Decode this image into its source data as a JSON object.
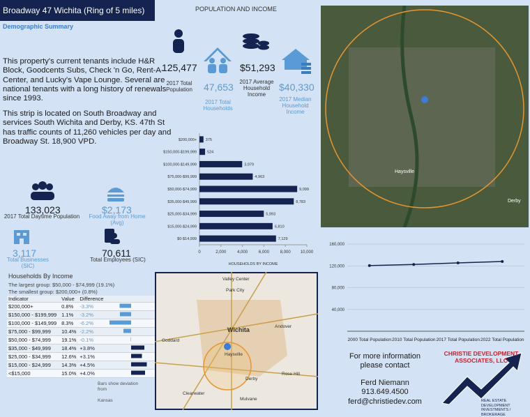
{
  "header": {
    "title": "Broadway 47 Wichita (Ring of 5 miles)",
    "subtitle": "Demographic Summary"
  },
  "summary": [
    "This property's current tenants include H&R Block, Goodcents Subs, Check 'n Go, Rent-A-Center, and Lucky's Vape Lounge. Several are national tenants with a long history of renewals since 1993.",
    "This strip is located on South Broadway and services South Wichita and Derby, KS. 47th St has traffic counts of 11,260 vehicles per day and Broadway St. 18,900 VPD."
  ],
  "stats": {
    "title": "POPULATION AND INCOME",
    "items": [
      {
        "value": "125,477",
        "label": "2017 Total Population"
      },
      {
        "value": "47,653",
        "label": "2017 Total Households"
      },
      {
        "value": "$51,293",
        "label": "2017 Average Household Income"
      },
      {
        "value": "$40,330",
        "label": "2017 Median Household Income"
      },
      {
        "value": "133,023",
        "label": "2017 Total Daytime Population"
      },
      {
        "value": "$2,173",
        "label": "Food Away from Home (Avg)"
      },
      {
        "value": "3,117",
        "label": "Total Businesses (SIC)"
      },
      {
        "value": "70,611",
        "label": "Total Employees (SIC)"
      }
    ]
  },
  "chart_data": [
    {
      "type": "bar",
      "orientation": "horizontal",
      "xlabel": "HOUSEHOLDS BY INCOME",
      "categories": [
        "$200,000+",
        "$150,000-$199,999",
        "$100,000-$149,999",
        "$75,000-$99,999",
        "$50,000-$74,999",
        "$35,000-$49,999",
        "$25,000-$34,999",
        "$15,000-$24,999",
        "$0-$14,999"
      ],
      "values": [
        375,
        524,
        3979,
        4963,
        9099,
        8783,
        5993,
        6810,
        7129
      ],
      "value_labels": [
        "375",
        "524",
        "3,979",
        "4,963",
        "9,099",
        "8,783",
        "5,993",
        "6,810",
        "7,129"
      ],
      "color": "#14234f",
      "xlim": [
        0,
        10000
      ],
      "xticks": [
        0,
        {
          "value": 2000,
          "label": "2,000"
        },
        {
          "value": 4000,
          "label": "4,000"
        },
        {
          "value": 6000,
          "label": "6,000"
        },
        {
          "value": 8000,
          "label": "8,000"
        },
        {
          "value": 10000,
          "label": "10,000"
        }
      ]
    },
    {
      "type": "line",
      "categories": [
        "2000 Total Population",
        "2010 Total Population",
        "2017 Total Population",
        "2022 Total Population"
      ],
      "values": [
        120500,
        122500,
        125477,
        128000
      ],
      "color": "#14234f",
      "ylim": [
        0,
        160000
      ],
      "yticks": [
        {
          "value": 40000,
          "label": "40,000"
        },
        {
          "value": 80000,
          "label": "80,000"
        },
        {
          "value": 120000,
          "label": "120,000"
        },
        {
          "value": 160000,
          "label": "160,000"
        }
      ],
      "grid": true
    }
  ],
  "income_table": {
    "title": "Households By Income",
    "largest": "The largest group: $50,000 - $74,999 (19.1%)",
    "smallest": "The smallest group: $200,000+ (0.8%)",
    "header": [
      "Indicator",
      "Value",
      "Difference"
    ],
    "rows": [
      [
        "$200,000+",
        "0.8%",
        "-3.3%"
      ],
      [
        "$150,000 - $199,999",
        "1.1%",
        "-3.2%"
      ],
      [
        "$100,000 - $149,999",
        "8.3%",
        "-6.2%"
      ],
      [
        "$75,000 - $99,999",
        "10.4%",
        "-2.2%"
      ],
      [
        "$50,000 - $74,999",
        "19.1%",
        "-0.1%"
      ],
      [
        "$35,000 - $49,999",
        "18.4%",
        "+3.8%"
      ],
      [
        "$25,000 - $34,999",
        "12.6%",
        "+3.1%"
      ],
      [
        "$15,000 - $24,999",
        "14.3%",
        "+4.5%"
      ],
      [
        "<$15,000",
        "15.0%",
        "+4.0%"
      ]
    ],
    "differences": [
      -3.3,
      -3.2,
      -6.2,
      -2.2,
      -0.1,
      3.8,
      3.1,
      4.5,
      4.0
    ]
  },
  "note": [
    "Bars show deviation",
    "from",
    "Kansas"
  ],
  "map_labels": [
    "Valley Center",
    "Park City",
    "Wichita",
    "Andover",
    "Goddard",
    "Haysville",
    "Derby",
    "Rose Hill",
    "Clearwater",
    "Mulvane"
  ],
  "satellite_labels": [
    "Haysville",
    "Derby"
  ],
  "contact": {
    "heading": "For more information please contact",
    "name": "Ferd Niemann",
    "phone": "913.649.4500",
    "email": "ferd@christiedev.com"
  },
  "logo": {
    "name": "CHRISTIE DEVELOPMENT ASSOCIATES, LLC",
    "tagline": "REAL ESTATE DEVELOPMENT INVESTMENTS / BROKERAGE"
  }
}
